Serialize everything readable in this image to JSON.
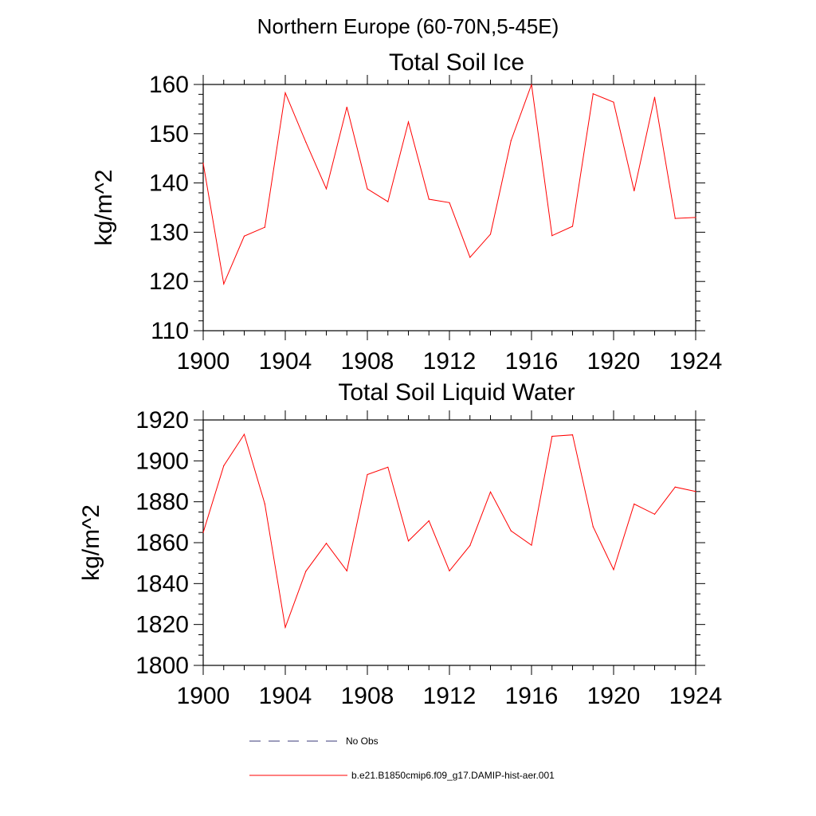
{
  "figure_title": "Northern Europe (60-70N,5-45E)",
  "legend": [
    {
      "label": "No Obs",
      "color": "#3a3a7a",
      "dash": true
    },
    {
      "label": "b.e21.B1850cmip6.f09_g17.DAMIP-hist-aer.001",
      "color": "#ff0000",
      "dash": false
    }
  ],
  "chart_data": [
    {
      "type": "line",
      "title": "Total Soil Ice",
      "xlabel": "",
      "ylabel": "kg/m^2",
      "xlim": [
        1900,
        1924
      ],
      "ylim": [
        110,
        160
      ],
      "x_major_ticks": [
        1900,
        1904,
        1908,
        1912,
        1916,
        1920,
        1924
      ],
      "y_major_ticks": [
        110,
        120,
        130,
        140,
        150,
        160
      ],
      "x": [
        1900,
        1901,
        1902,
        1903,
        1904,
        1905,
        1906,
        1907,
        1908,
        1909,
        1910,
        1911,
        1912,
        1913,
        1914,
        1915,
        1916,
        1917,
        1918,
        1919,
        1920,
        1921,
        1922,
        1923,
        1924
      ],
      "series": [
        {
          "color": "#ff0000",
          "values": [
            144.0,
            119.5,
            129.2,
            131.0,
            158.3,
            148.3,
            138.8,
            155.4,
            138.8,
            136.2,
            152.4,
            136.7,
            136.0,
            124.9,
            129.6,
            148.6,
            160.0,
            129.3,
            131.2,
            158.1,
            156.4,
            138.4,
            157.4,
            132.8,
            133.0
          ]
        }
      ]
    },
    {
      "type": "line",
      "title": "Total Soil Liquid Water",
      "xlabel": "",
      "ylabel": "kg/m^2",
      "xlim": [
        1900,
        1924
      ],
      "ylim": [
        1800,
        1920
      ],
      "x_major_ticks": [
        1900,
        1904,
        1908,
        1912,
        1916,
        1920,
        1924
      ],
      "y_major_ticks": [
        1800,
        1820,
        1840,
        1860,
        1880,
        1900,
        1920
      ],
      "x": [
        1900,
        1901,
        1902,
        1903,
        1904,
        1905,
        1906,
        1907,
        1908,
        1909,
        1910,
        1911,
        1912,
        1913,
        1914,
        1915,
        1916,
        1917,
        1918,
        1919,
        1920,
        1921,
        1922,
        1923,
        1924
      ],
      "series": [
        {
          "color": "#ff0000",
          "values": [
            1865.0,
            1897.6,
            1913.0,
            1879.0,
            1818.6,
            1846.0,
            1859.7,
            1846.2,
            1893.3,
            1896.9,
            1860.8,
            1870.7,
            1846.2,
            1858.6,
            1884.8,
            1865.8,
            1858.8,
            1912.0,
            1912.7,
            1867.8,
            1846.8,
            1878.9,
            1873.9,
            1887.2,
            1885.0
          ]
        }
      ]
    }
  ]
}
